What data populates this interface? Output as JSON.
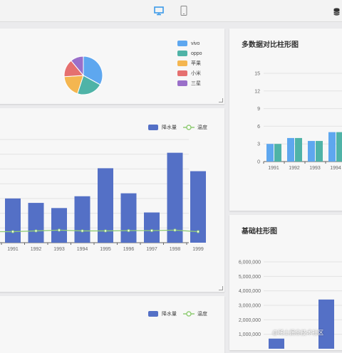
{
  "toolbar": {
    "icons": [
      "desktop-icon",
      "mobile-icon",
      "database-icon"
    ]
  },
  "pie_panel": {
    "legend": [
      {
        "label": "vivo",
        "color": "#5ea7ef"
      },
      {
        "label": "oppo",
        "color": "#4fb3a7"
      },
      {
        "label": "苹果",
        "color": "#f4b650"
      },
      {
        "label": "小米",
        "color": "#e5706f"
      },
      {
        "label": "三星",
        "color": "#9a6fc9"
      }
    ]
  },
  "compare_panel": {
    "title": "多数据对比柱形图"
  },
  "rain_panel": {
    "legend_bar": "降水量",
    "legend_line": "温度"
  },
  "basic_panel": {
    "title": "基础柱形图"
  },
  "bottom_panel": {
    "legend_bar": "降水量",
    "legend_line": "温度"
  },
  "watermark": "@稀土掘金技术社区",
  "chart_data": [
    {
      "type": "pie",
      "categories": [
        "vivo",
        "oppo",
        "苹果",
        "小米",
        "三星"
      ],
      "values": [
        33,
        22,
        19,
        15,
        11
      ]
    },
    {
      "type": "bar",
      "categories": [
        "1991",
        "1992",
        "1993",
        "1994"
      ],
      "series": [
        {
          "values": [
            3,
            4,
            3.5,
            5
          ]
        },
        {
          "values": [
            3,
            4,
            3.5,
            5
          ]
        }
      ],
      "yticks": [
        0,
        3,
        6,
        9,
        12,
        15
      ],
      "ylim": [
        0,
        15
      ]
    },
    {
      "type": "bar",
      "categories": [
        "1991",
        "1992",
        "1993",
        "1994",
        "1995",
        "1996",
        "1997",
        "1998",
        "1999"
      ],
      "series": [
        {
          "name": "降水量",
          "type": "bar",
          "values": [
            300,
            270,
            235,
            315,
            505,
            335,
            205,
            610,
            485
          ]
        },
        {
          "name": "温度",
          "type": "line",
          "values": [
            75,
            80,
            85,
            80,
            80,
            82,
            82,
            85,
            75
          ]
        }
      ],
      "ylim": [
        0,
        700
      ]
    },
    {
      "type": "bar",
      "categories": [
        "",
        ""
      ],
      "values": [
        700000,
        3400000
      ],
      "yticks": [
        "1,000,000",
        "2,000,000",
        "3,000,000",
        "4,000,000",
        "5,000,000",
        "6,000,000"
      ],
      "ylim": [
        0,
        6000000
      ]
    }
  ]
}
